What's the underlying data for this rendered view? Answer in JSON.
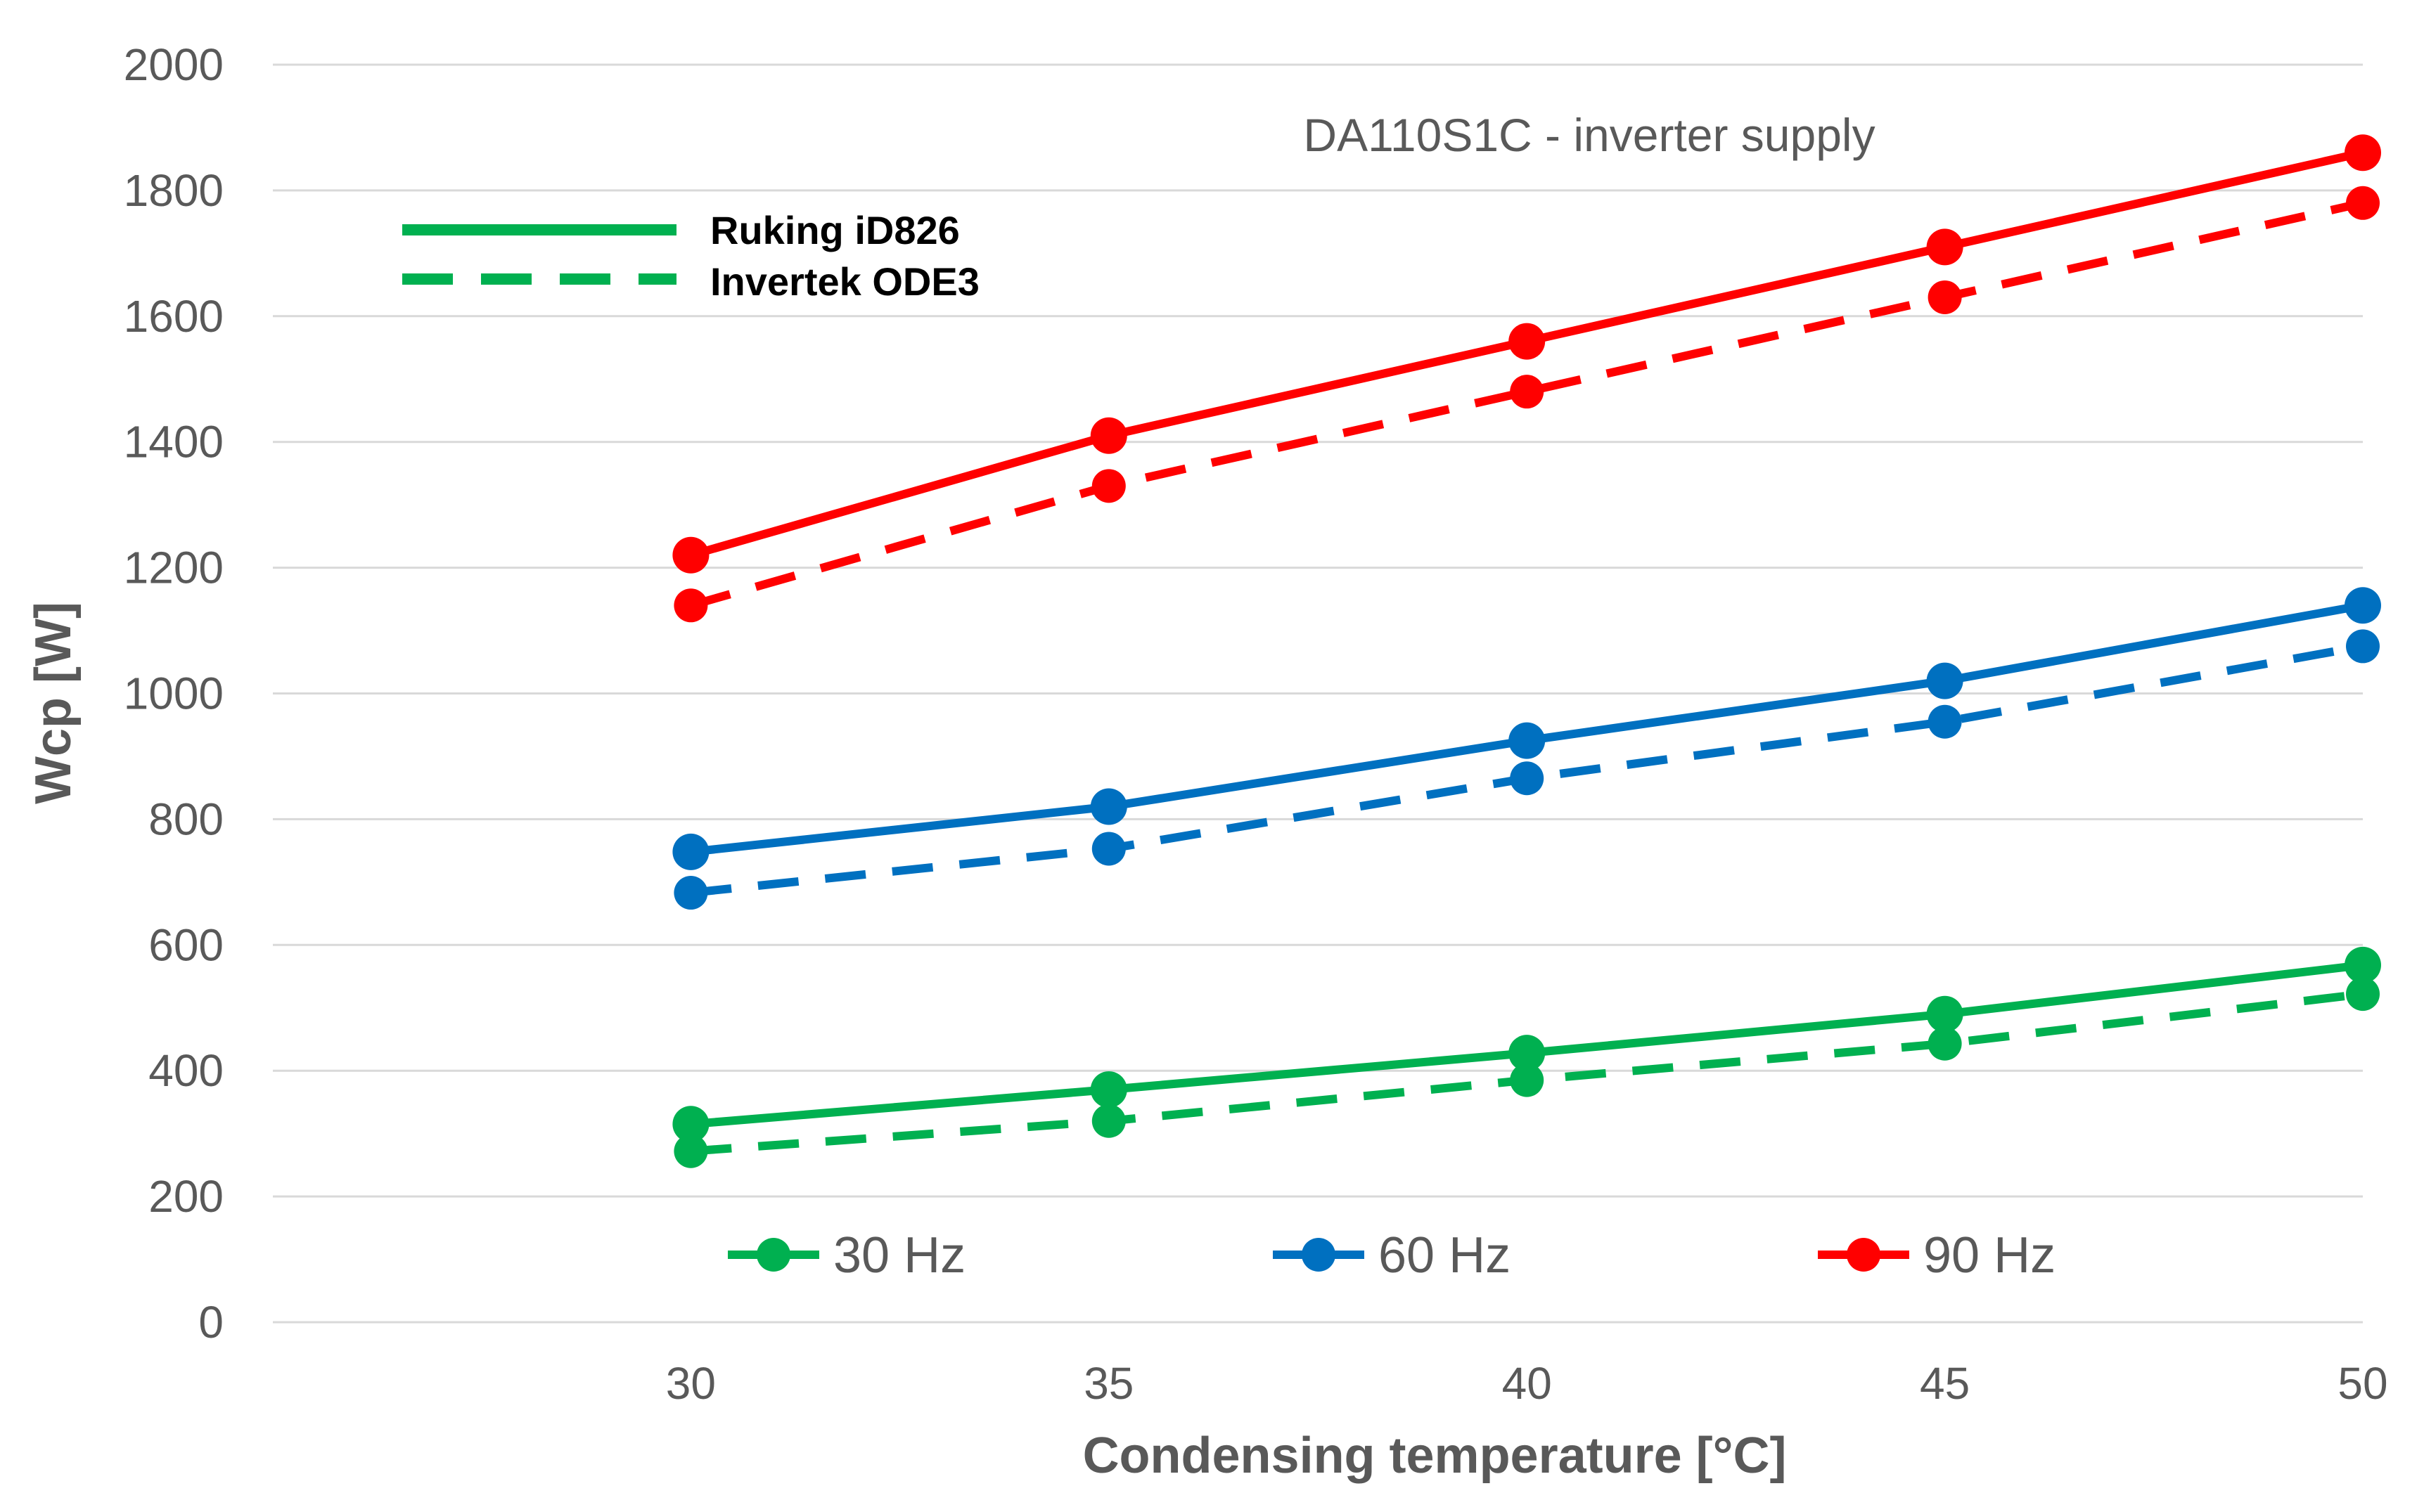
{
  "chart_data": {
    "type": "line",
    "title": "DA110S1C - inverter supply",
    "xlabel": "Condensing temperature  [°C]",
    "ylabel": "Wcp  [W]",
    "x": [
      30,
      35,
      40,
      45,
      50
    ],
    "x_ticks": [
      "30",
      "35",
      "40",
      "45",
      "50"
    ],
    "xlim": [
      25,
      50
    ],
    "ylim": [
      0,
      2000
    ],
    "y_ticks": [
      "0",
      "200",
      "400",
      "600",
      "800",
      "1000",
      "1200",
      "1400",
      "1600",
      "1800",
      "2000"
    ],
    "grid": true,
    "style_legend": [
      {
        "label": "Ruking iD826",
        "style": "solid",
        "color": "#00b050"
      },
      {
        "label": "Invertek ODE3",
        "style": "dashed",
        "color": "#00b050"
      }
    ],
    "frequency_legend": [
      {
        "label": "30 Hz",
        "color": "#00b050"
      },
      {
        "label": "60 Hz",
        "color": "#0070c0"
      },
      {
        "label": "90 Hz",
        "color": "#ff0000"
      }
    ],
    "series": [
      {
        "name": "30 Hz - Ruking iD826",
        "freq": "30 Hz",
        "drive": "Ruking iD826",
        "dash": "solid",
        "color": "#00b050",
        "values": [
          315,
          370,
          428,
          490,
          568
        ]
      },
      {
        "name": "30 Hz - Invertek ODE3",
        "freq": "30 Hz",
        "drive": "Invertek ODE3",
        "dash": "dashed",
        "color": "#00b050",
        "values": [
          272,
          320,
          385,
          443,
          522
        ]
      },
      {
        "name": "60 Hz - Ruking iD826",
        "freq": "60 Hz",
        "drive": "Ruking iD826",
        "dash": "solid",
        "color": "#0070c0",
        "values": [
          748,
          820,
          925,
          1020,
          1140
        ]
      },
      {
        "name": "60 Hz - Invertek ODE3",
        "freq": "60 Hz",
        "drive": "Invertek ODE3",
        "dash": "dashed",
        "color": "#0070c0",
        "values": [
          683,
          753,
          865,
          955,
          1075
        ]
      },
      {
        "name": "90 Hz - Ruking iD826",
        "freq": "90 Hz",
        "drive": "Ruking iD826",
        "dash": "solid",
        "color": "#ff0000",
        "values": [
          1220,
          1410,
          1560,
          1710,
          1860
        ]
      },
      {
        "name": "90 Hz - Invertek ODE3",
        "freq": "90 Hz",
        "drive": "Invertek ODE3",
        "dash": "dashed",
        "color": "#ff0000",
        "values": [
          1140,
          1330,
          1480,
          1630,
          1780
        ]
      }
    ]
  }
}
